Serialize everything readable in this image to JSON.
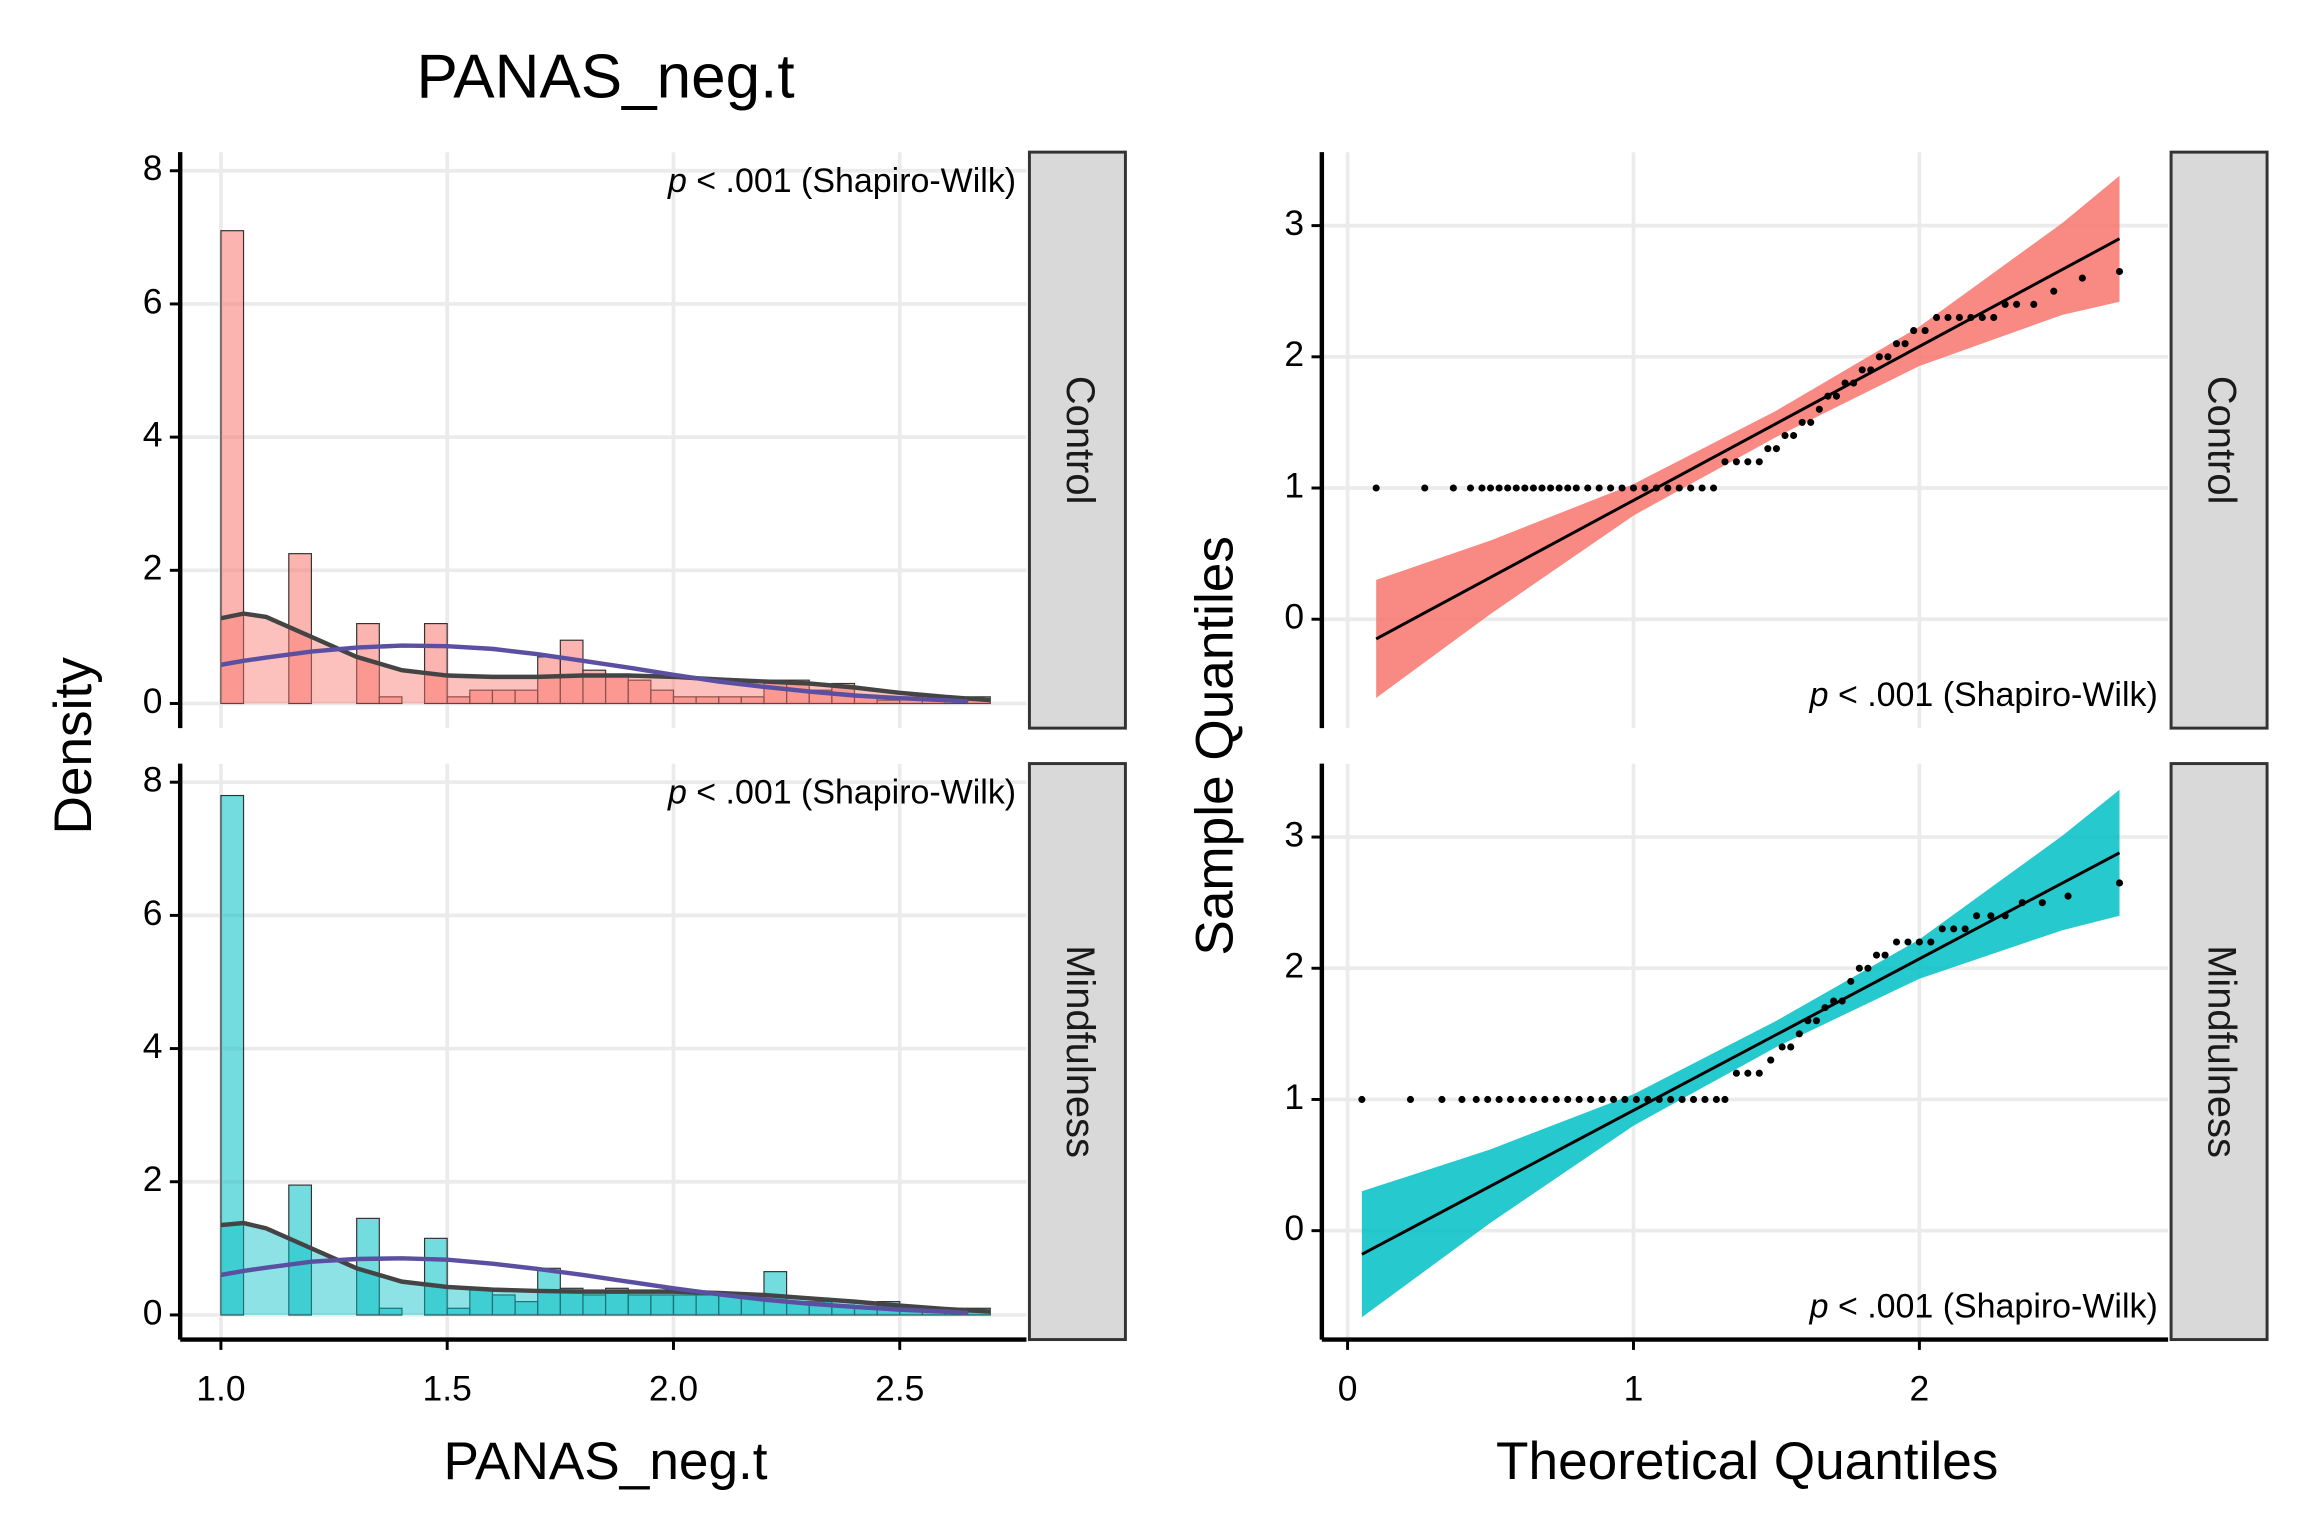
{
  "figure": {
    "title": "PANAS_neg.t",
    "xlabel_left": "PANAS_neg.t",
    "ylabel_left": "Density",
    "xlabel_right": "Theoretical Quantiles",
    "ylabel_right": "Sample Quantiles"
  },
  "chart_data": [
    {
      "type": "histogram",
      "facet": "Control",
      "color": "#F8766D",
      "annotation": {
        "italic": "p",
        "text": "< .001 (Shapiro-Wilk)"
      },
      "bins": [
        1.0,
        1.05,
        1.1,
        1.15,
        1.2,
        1.25,
        1.3,
        1.35,
        1.4,
        1.45,
        1.5,
        1.55,
        1.6,
        1.65,
        1.7,
        1.75,
        1.8,
        1.85,
        1.9,
        1.95,
        2.0,
        2.05,
        2.1,
        2.15,
        2.2,
        2.25,
        2.3,
        2.35,
        2.4,
        2.45,
        2.5,
        2.55,
        2.6,
        2.65,
        2.7
      ],
      "values": [
        7.1,
        0,
        0,
        2.25,
        0,
        0,
        1.2,
        0.1,
        0,
        1.2,
        0.1,
        0.2,
        0.2,
        0.2,
        0.7,
        0.95,
        0.5,
        0.4,
        0.35,
        0.2,
        0.1,
        0.1,
        0.1,
        0.1,
        0.35,
        0.35,
        0.2,
        0.3,
        0.1,
        0.05,
        0.1,
        0.05,
        0.05,
        0.1
      ],
      "density_curve": {
        "color": "#444444",
        "x": [
          1.0,
          1.05,
          1.1,
          1.2,
          1.3,
          1.4,
          1.5,
          1.6,
          1.7,
          1.8,
          1.9,
          2.0,
          2.1,
          2.2,
          2.3,
          2.4,
          2.5,
          2.6,
          2.7
        ],
        "values": [
          1.28,
          1.35,
          1.3,
          1.0,
          0.7,
          0.5,
          0.42,
          0.4,
          0.4,
          0.42,
          0.42,
          0.4,
          0.36,
          0.33,
          0.3,
          0.24,
          0.16,
          0.1,
          0.05
        ]
      },
      "normal_curve": {
        "color": "#5a4fa0",
        "x": [
          1.0,
          1.05,
          1.1,
          1.2,
          1.3,
          1.4,
          1.5,
          1.6,
          1.7,
          1.8,
          1.9,
          2.0,
          2.1,
          2.2,
          2.3,
          2.4,
          2.5,
          2.6,
          2.65
        ],
        "values": [
          0.58,
          0.64,
          0.69,
          0.78,
          0.84,
          0.87,
          0.86,
          0.82,
          0.74,
          0.64,
          0.54,
          0.43,
          0.33,
          0.25,
          0.18,
          0.12,
          0.08,
          0.05,
          0.03
        ]
      },
      "xlim": [
        0.91,
        2.78
      ],
      "xticks": [
        {
          "value": 1,
          "label": "1.0"
        },
        1.5,
        {
          "value": 2,
          "label": "2.0"
        },
        2.5
      ],
      "ylim": [
        -0.37,
        8.28
      ],
      "yticks": [
        0,
        2,
        4,
        6,
        8
      ],
      "grid": true
    },
    {
      "type": "histogram",
      "facet": "Mindfulness",
      "color": "#00BFC4",
      "annotation": {
        "italic": "p",
        "text": "< .001 (Shapiro-Wilk)"
      },
      "bins": [
        1.0,
        1.05,
        1.1,
        1.15,
        1.2,
        1.25,
        1.3,
        1.35,
        1.4,
        1.45,
        1.5,
        1.55,
        1.6,
        1.65,
        1.7,
        1.75,
        1.8,
        1.85,
        1.9,
        1.95,
        2.0,
        2.05,
        2.1,
        2.15,
        2.2,
        2.25,
        2.3,
        2.35,
        2.4,
        2.45,
        2.5,
        2.55,
        2.6,
        2.65,
        2.7
      ],
      "values": [
        7.8,
        0,
        0,
        1.95,
        0,
        0,
        1.45,
        0.1,
        0,
        1.15,
        0.1,
        0.4,
        0.3,
        0.2,
        0.7,
        0.4,
        0.3,
        0.4,
        0.3,
        0.3,
        0.3,
        0.3,
        0.3,
        0.3,
        0.65,
        0.2,
        0.2,
        0.15,
        0.1,
        0.2,
        0.1,
        0.1,
        0.1,
        0.1
      ],
      "density_curve": {
        "color": "#444444",
        "x": [
          1.0,
          1.05,
          1.1,
          1.2,
          1.3,
          1.4,
          1.5,
          1.6,
          1.7,
          1.8,
          1.9,
          2.0,
          2.1,
          2.2,
          2.3,
          2.4,
          2.5,
          2.6,
          2.7
        ],
        "values": [
          1.35,
          1.38,
          1.3,
          1.0,
          0.7,
          0.5,
          0.42,
          0.38,
          0.36,
          0.35,
          0.35,
          0.35,
          0.33,
          0.3,
          0.25,
          0.2,
          0.14,
          0.09,
          0.05
        ]
      },
      "normal_curve": {
        "color": "#5a4fa0",
        "x": [
          1.0,
          1.05,
          1.1,
          1.2,
          1.3,
          1.4,
          1.5,
          1.6,
          1.7,
          1.8,
          1.9,
          2.0,
          2.1,
          2.2,
          2.3,
          2.4,
          2.5,
          2.6,
          2.65
        ],
        "values": [
          0.6,
          0.66,
          0.71,
          0.8,
          0.84,
          0.85,
          0.83,
          0.77,
          0.69,
          0.6,
          0.5,
          0.4,
          0.31,
          0.23,
          0.17,
          0.12,
          0.08,
          0.05,
          0.03
        ]
      },
      "xlim": [
        0.91,
        2.78
      ],
      "xticks": [
        {
          "value": 1,
          "label": "1.0"
        },
        1.5,
        {
          "value": 2,
          "label": "2.0"
        },
        2.5
      ],
      "ylim": [
        -0.37,
        8.28
      ],
      "yticks": [
        0,
        2,
        4,
        6,
        8
      ],
      "grid": true
    },
    {
      "type": "qq",
      "facet": "Control",
      "color": "#F8766D",
      "annotation": {
        "italic": "p",
        "text": "< .001 (Shapiro-Wilk)"
      },
      "points": {
        "x": [
          0.1,
          0.27,
          0.37,
          0.43,
          0.47,
          0.5,
          0.53,
          0.56,
          0.59,
          0.62,
          0.65,
          0.68,
          0.71,
          0.74,
          0.77,
          0.8,
          0.84,
          0.88,
          0.92,
          0.96,
          1.0,
          1.04,
          1.08,
          1.12,
          1.16,
          1.2,
          1.24,
          1.28,
          1.32,
          1.36,
          1.4,
          1.44,
          1.47,
          1.5,
          1.53,
          1.56,
          1.59,
          1.62,
          1.65,
          1.68,
          1.71,
          1.74,
          1.77,
          1.8,
          1.83,
          1.86,
          1.89,
          1.92,
          1.95,
          1.98,
          2.02,
          2.06,
          2.1,
          2.14,
          2.18,
          2.22,
          2.26,
          2.3,
          2.34,
          2.4,
          2.47,
          2.57,
          2.7
        ],
        "values": [
          1,
          1,
          1,
          1,
          1,
          1,
          1,
          1,
          1,
          1,
          1,
          1,
          1,
          1,
          1,
          1,
          1,
          1,
          1,
          1,
          1,
          1,
          1,
          1,
          1,
          1,
          1,
          1,
          1.2,
          1.2,
          1.2,
          1.2,
          1.3,
          1.3,
          1.4,
          1.4,
          1.5,
          1.5,
          1.6,
          1.7,
          1.7,
          1.8,
          1.8,
          1.9,
          1.9,
          2.0,
          2.0,
          2.1,
          2.1,
          2.2,
          2.2,
          2.3,
          2.3,
          2.3,
          2.3,
          2.3,
          2.3,
          2.4,
          2.4,
          2.4,
          2.5,
          2.6,
          2.65
        ]
      },
      "fit_line": {
        "x": [
          0.1,
          2.7
        ],
        "values": [
          -0.15,
          2.9
        ]
      },
      "band": {
        "x": [
          0.1,
          0.5,
          1.0,
          1.5,
          2.0,
          2.5,
          2.7
        ],
        "lower": [
          -0.6,
          0.04,
          0.79,
          1.39,
          1.93,
          2.32,
          2.42
        ],
        "upper": [
          0.3,
          0.6,
          1.03,
          1.59,
          2.23,
          3.02,
          3.38
        ]
      },
      "xlim": [
        -0.09,
        2.87
      ],
      "xticks": [
        0,
        1,
        2
      ],
      "ylim": [
        -0.83,
        3.56
      ],
      "yticks": [
        0,
        1,
        2,
        3
      ],
      "grid": true
    },
    {
      "type": "qq",
      "facet": "Mindfulness",
      "color": "#00BFC4",
      "annotation": {
        "italic": "p",
        "text": "< .001 (Shapiro-Wilk)"
      },
      "points": {
        "x": [
          0.05,
          0.22,
          0.33,
          0.4,
          0.45,
          0.49,
          0.53,
          0.57,
          0.61,
          0.65,
          0.69,
          0.73,
          0.77,
          0.81,
          0.85,
          0.89,
          0.93,
          0.97,
          1.01,
          1.05,
          1.09,
          1.13,
          1.17,
          1.21,
          1.25,
          1.29,
          1.32,
          1.36,
          1.4,
          1.44,
          1.48,
          1.52,
          1.55,
          1.58,
          1.61,
          1.64,
          1.67,
          1.7,
          1.73,
          1.76,
          1.79,
          1.82,
          1.85,
          1.88,
          1.92,
          1.96,
          2.0,
          2.04,
          2.08,
          2.12,
          2.16,
          2.2,
          2.25,
          2.3,
          2.36,
          2.43,
          2.52,
          2.7
        ],
        "values": [
          1,
          1,
          1,
          1,
          1,
          1,
          1,
          1,
          1,
          1,
          1,
          1,
          1,
          1,
          1,
          1,
          1,
          1,
          1,
          1,
          1,
          1,
          1,
          1,
          1,
          1,
          1,
          1.2,
          1.2,
          1.2,
          1.3,
          1.4,
          1.4,
          1.5,
          1.6,
          1.6,
          1.7,
          1.75,
          1.75,
          1.9,
          2.0,
          2.0,
          2.1,
          2.1,
          2.2,
          2.2,
          2.2,
          2.2,
          2.3,
          2.3,
          2.3,
          2.4,
          2.4,
          2.4,
          2.5,
          2.5,
          2.55,
          2.65
        ]
      },
      "fit_line": {
        "x": [
          0.05,
          2.7
        ],
        "values": [
          -0.18,
          2.88
        ]
      },
      "band": {
        "x": [
          0.05,
          0.5,
          1.0,
          1.5,
          2.0,
          2.5,
          2.7
        ],
        "lower": [
          -0.66,
          0.06,
          0.8,
          1.4,
          1.92,
          2.29,
          2.4
        ],
        "upper": [
          0.3,
          0.62,
          1.04,
          1.6,
          2.22,
          3.01,
          3.36
        ]
      },
      "xlim": [
        -0.09,
        2.87
      ],
      "xticks": [
        0,
        1,
        2
      ],
      "ylim": [
        -0.83,
        3.56
      ],
      "yticks": [
        0,
        1,
        2,
        3
      ],
      "grid": true
    }
  ]
}
